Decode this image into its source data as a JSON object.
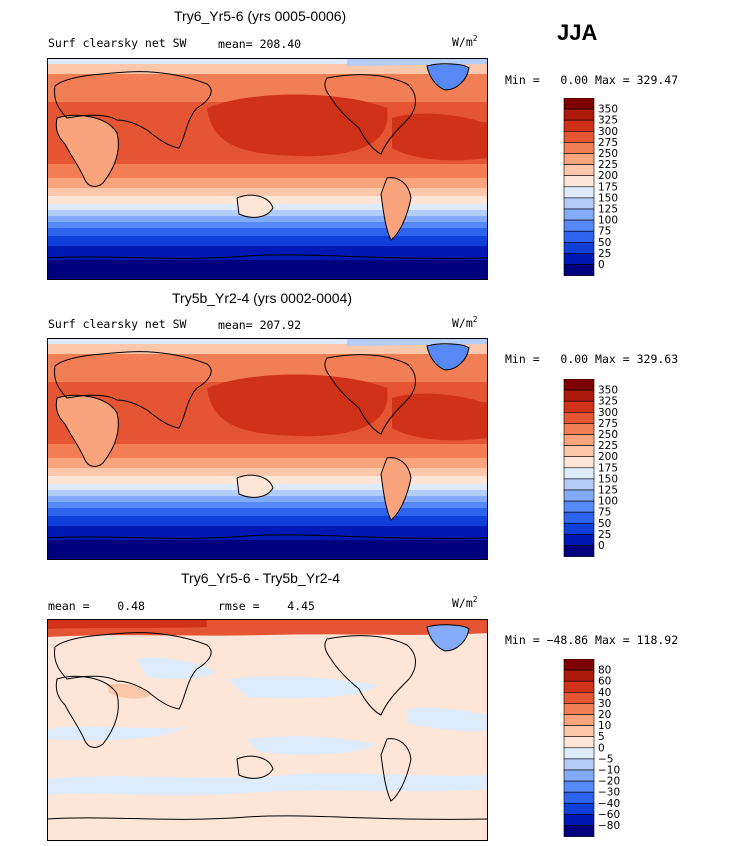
{
  "season": "JJA",
  "palette": [
    "#00007f",
    "#0018b4",
    "#0f3fd9",
    "#2d63ee",
    "#5689f5",
    "#84abf7",
    "#b4cdf7",
    "#deebfa",
    "#fde6d8",
    "#fcc7aa",
    "#f9a47c",
    "#f27e55",
    "#e55533",
    "#cf3218",
    "#ac1a0c",
    "#7f0000"
  ],
  "panels": [
    {
      "title": "Try6_Yr5-6 (yrs 0005-0006)",
      "field": "Surf clearsky net SW",
      "mean_label": "mean=",
      "mean_value": "208.40",
      "units_base": "W/m",
      "units_exp": "2",
      "min_label": "Min =",
      "min_value": "0.00",
      "max_label": "Max =",
      "max_value": "329.47",
      "colorbar": [
        "350",
        "325",
        "300",
        "275",
        "250",
        "225",
        "200",
        "175",
        "150",
        "125",
        "100",
        "75",
        "50",
        "25",
        "0"
      ]
    },
    {
      "title": "Try5b_Yr2-4 (yrs 0002-0004)",
      "field": "Surf clearsky net SW",
      "mean_label": "mean=",
      "mean_value": "207.92",
      "units_base": "W/m",
      "units_exp": "2",
      "min_label": "Min =",
      "min_value": "0.00",
      "max_label": "Max =",
      "max_value": "329.63",
      "colorbar": [
        "350",
        "325",
        "300",
        "275",
        "250",
        "225",
        "200",
        "175",
        "150",
        "125",
        "100",
        "75",
        "50",
        "25",
        "0"
      ]
    },
    {
      "title": "Try6_Yr5-6 - Try5b_Yr2-4",
      "mean_label": "mean =",
      "mean_value": "0.48",
      "rmse_label": "rmse =",
      "rmse_value": "4.45",
      "units_base": "W/m",
      "units_exp": "2",
      "min_label": "Min =",
      "min_value": "−48.86",
      "max_label": "Max =",
      "max_value": "118.92",
      "colorbar": [
        "80",
        "60",
        "40",
        "30",
        "20",
        "10",
        "5",
        "0",
        "−5",
        "−10",
        "−20",
        "−30",
        "−40",
        "−60",
        "−80"
      ]
    }
  ]
}
